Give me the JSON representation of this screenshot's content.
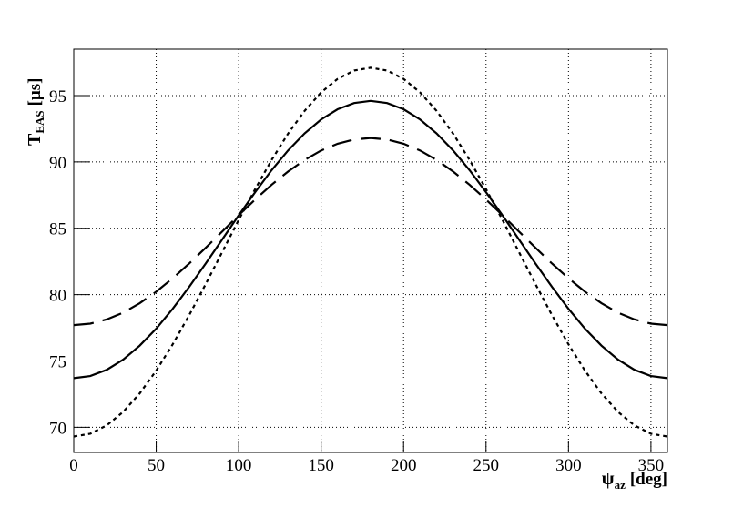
{
  "chart_data": {
    "type": "line",
    "xlabel": {
      "main": "ψ",
      "sub": "az",
      "unit": "[deg]"
    },
    "ylabel": {
      "main": "T",
      "sub": "EAS",
      "unit": "[μs]"
    },
    "x": [
      0,
      10,
      20,
      30,
      40,
      50,
      60,
      70,
      80,
      90,
      100,
      110,
      120,
      130,
      140,
      150,
      160,
      170,
      180,
      190,
      200,
      210,
      220,
      230,
      240,
      250,
      260,
      270,
      280,
      290,
      300,
      310,
      320,
      330,
      340,
      350,
      360
    ],
    "series": [
      {
        "color": "#000000",
        "line_style": "solid",
        "values": [
          73.7,
          73.86,
          74.33,
          75.1,
          76.15,
          77.43,
          78.93,
          80.58,
          82.34,
          84.15,
          85.97,
          87.72,
          89.38,
          90.87,
          92.15,
          93.2,
          93.97,
          94.44,
          94.6,
          94.44,
          93.97,
          93.2,
          92.15,
          90.87,
          89.38,
          87.72,
          85.97,
          84.15,
          82.34,
          80.58,
          78.93,
          77.43,
          76.15,
          75.1,
          74.33,
          73.86,
          73.7
        ]
      },
      {
        "color": "#000000",
        "line_style": "dashed",
        "values": [
          77.7,
          77.81,
          78.13,
          78.64,
          79.35,
          80.22,
          81.23,
          82.34,
          83.53,
          84.75,
          85.98,
          87.16,
          88.28,
          89.28,
          90.15,
          90.86,
          91.37,
          91.69,
          91.8,
          91.69,
          91.37,
          90.86,
          90.15,
          89.28,
          88.28,
          87.16,
          85.98,
          84.75,
          83.53,
          82.34,
          81.23,
          80.22,
          79.35,
          78.64,
          78.13,
          77.81,
          77.7
        ]
      },
      {
        "color": "#000000",
        "line_style": "dotted",
        "values": [
          69.3,
          69.51,
          70.14,
          71.16,
          72.55,
          74.27,
          76.25,
          78.45,
          80.79,
          83.2,
          85.62,
          87.95,
          90.15,
          92.14,
          93.85,
          95.24,
          96.26,
          96.89,
          97.1,
          96.89,
          96.26,
          95.24,
          93.85,
          92.14,
          90.15,
          87.95,
          85.62,
          83.2,
          80.79,
          78.45,
          76.25,
          74.27,
          72.55,
          71.16,
          70.14,
          69.51,
          69.3
        ]
      }
    ],
    "xlim": [
      0,
      360
    ],
    "xticks": [
      0,
      50,
      100,
      150,
      200,
      250,
      300,
      350
    ],
    "ylim": [
      68.1,
      98.5
    ],
    "yticks": [
      70,
      75,
      80,
      85,
      90,
      95
    ],
    "grid": true
  }
}
